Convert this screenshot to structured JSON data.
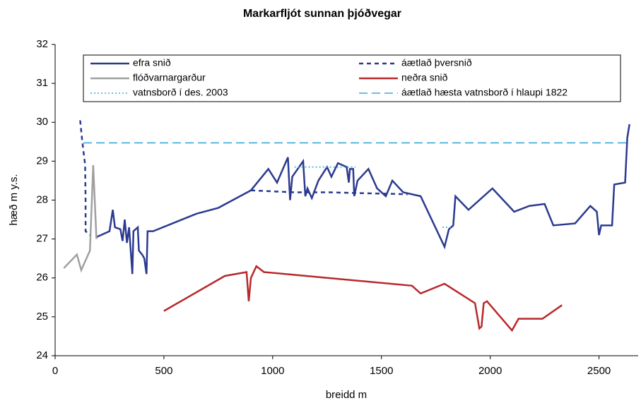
{
  "chart_data": {
    "type": "line",
    "title": "Markarfljót sunnan þjóðvegar",
    "xlabel": "breidd m",
    "ylabel": "hæð m y.s.",
    "xlim": [
      0,
      2680
    ],
    "xticks": [
      0,
      500,
      1000,
      1500,
      2000,
      2500
    ],
    "ylim": [
      24,
      32
    ],
    "yticks": [
      24,
      25,
      26,
      27,
      28,
      29,
      30,
      31,
      32
    ],
    "grid": false,
    "legend": "top",
    "series": [
      {
        "name": "efra snið",
        "color": "#2b3a8f",
        "dash": "solid",
        "x": [
          190,
          250,
          265,
          275,
          300,
          310,
          320,
          330,
          340,
          350,
          355,
          360,
          380,
          385,
          400,
          410,
          420,
          425,
          450,
          650,
          750,
          800,
          900,
          980,
          1020,
          1070,
          1080,
          1090,
          1140,
          1150,
          1160,
          1180,
          1210,
          1250,
          1270,
          1300,
          1340,
          1350,
          1355,
          1370,
          1375,
          1390,
          1440,
          1480,
          1520,
          1550,
          1600,
          1680,
          1790,
          1810,
          1830,
          1840,
          1900,
          2010,
          2110,
          2180,
          2250,
          2290,
          2390,
          2460,
          2490,
          2500,
          2510,
          2560,
          2570,
          2620,
          2630,
          2640
        ],
        "values": [
          27.05,
          27.2,
          27.75,
          27.3,
          27.25,
          26.95,
          27.5,
          26.9,
          27.3,
          26.5,
          26.1,
          27.2,
          27.3,
          26.7,
          26.6,
          26.5,
          26.1,
          27.2,
          27.2,
          27.65,
          27.8,
          27.95,
          28.25,
          28.8,
          28.45,
          29.1,
          28.0,
          28.6,
          29.0,
          28.1,
          28.3,
          28.05,
          28.5,
          28.85,
          28.6,
          28.95,
          28.85,
          28.45,
          28.8,
          28.8,
          28.1,
          28.5,
          28.8,
          28.3,
          28.1,
          28.5,
          28.2,
          28.1,
          26.8,
          27.25,
          27.35,
          28.1,
          27.75,
          28.3,
          27.7,
          27.85,
          27.9,
          27.35,
          27.4,
          27.85,
          27.7,
          27.1,
          27.35,
          27.35,
          28.4,
          28.45,
          29.6,
          29.95
        ]
      },
      {
        "name": "áætlað þversnið",
        "color": "#2b3a8f",
        "dash": "dashed",
        "x": [
          115,
          125,
          138,
          140,
          140,
          160,
          null,
          900,
          1100,
          1250,
          1620
        ],
        "values": [
          30.05,
          29.5,
          28.9,
          28.0,
          27.2,
          27.1,
          null,
          28.25,
          28.2,
          28.2,
          28.15
        ]
      },
      {
        "name": "flóðvarnargarður",
        "color": "#a0a0a0",
        "dash": "solid",
        "x": [
          40,
          100,
          120,
          160,
          175,
          190
        ],
        "values": [
          26.25,
          26.6,
          26.2,
          26.7,
          28.9,
          27.0
        ]
      },
      {
        "name": "neðra snið",
        "color": "#b8282b",
        "dash": "solid",
        "x": [
          500,
          780,
          880,
          890,
          900,
          925,
          960,
          1640,
          1680,
          1790,
          1930,
          1950,
          1960,
          1970,
          1985,
          2100,
          2130,
          2240,
          2330
        ],
        "values": [
          25.15,
          26.05,
          26.15,
          25.4,
          26.0,
          26.3,
          26.15,
          25.8,
          25.6,
          25.85,
          25.35,
          24.7,
          24.75,
          25.35,
          25.4,
          24.65,
          24.95,
          24.95,
          25.3
        ]
      },
      {
        "name": "vatnsborð í des. 2003",
        "color": "#3aa8dc",
        "dash": "dotted",
        "x": [
          1100,
          1380,
          null,
          1780,
          1830
        ],
        "values": [
          28.85,
          28.85,
          null,
          27.3,
          27.3
        ]
      },
      {
        "name": "áætlað hæsta vatnsborð í hlaupi 1822",
        "color": "#3aa8dc",
        "dash": "longdash",
        "x": [
          130,
          2630
        ],
        "values": [
          29.47,
          29.47
        ]
      }
    ]
  }
}
